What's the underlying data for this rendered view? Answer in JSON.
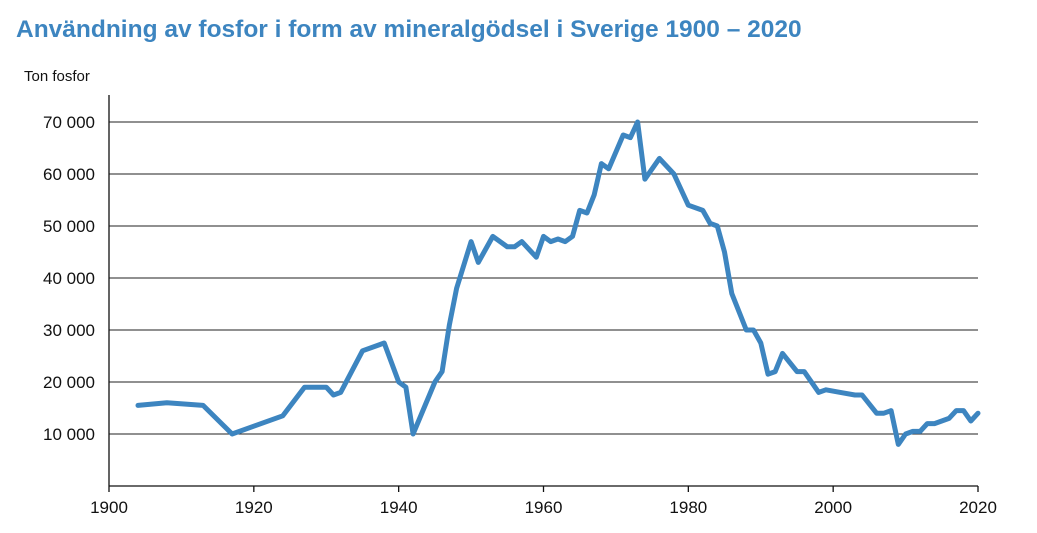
{
  "chart_data": {
    "type": "line",
    "title": "Användning av fosfor i form av mineralgödsel i Sverige 1900 – 2020",
    "ylabel": "Ton fosfor",
    "xlabel": "",
    "xlim": [
      1900,
      2020
    ],
    "ylim": [
      0,
      75000
    ],
    "grid": true,
    "x_ticks": [
      1900,
      1920,
      1940,
      1960,
      1980,
      2000,
      2020
    ],
    "x_tick_labels": [
      "1900",
      "1920",
      "1940",
      "1960",
      "1980",
      "2000",
      "2020"
    ],
    "y_ticks": [
      10000,
      20000,
      30000,
      40000,
      50000,
      60000,
      70000
    ],
    "y_tick_labels": [
      "10 000",
      "20 000",
      "30 000",
      "40 000",
      "50 000",
      "60 000",
      "70 000"
    ],
    "line_color": "#3d85c0",
    "series": [
      {
        "name": "Ton fosfor",
        "x": [
          1904,
          1908,
          1913,
          1917,
          1920,
          1924,
          1927,
          1930,
          1931,
          1932,
          1935,
          1938,
          1940,
          1941,
          1942,
          1945,
          1946,
          1947,
          1948,
          1950,
          1951,
          1953,
          1955,
          1956,
          1957,
          1959,
          1960,
          1961,
          1962,
          1963,
          1964,
          1965,
          1966,
          1967,
          1968,
          1969,
          1971,
          1972,
          1973,
          1974,
          1976,
          1978,
          1980,
          1982,
          1983,
          1984,
          1985,
          1986,
          1988,
          1989,
          1990,
          1991,
          1992,
          1993,
          1995,
          1996,
          1998,
          1999,
          2001,
          2003,
          2004,
          2006,
          2007,
          2008,
          2009,
          2010,
          2011,
          2012,
          2013,
          2014,
          2016,
          2017,
          2018,
          2019,
          2020
        ],
        "y": [
          15500,
          16000,
          15500,
          10000,
          11500,
          13500,
          19000,
          19000,
          17500,
          18000,
          26000,
          27500,
          20000,
          19000,
          10000,
          20000,
          22000,
          31000,
          38000,
          47000,
          43000,
          48000,
          46000,
          46000,
          47000,
          44000,
          48000,
          47000,
          47500,
          47000,
          48000,
          53000,
          52500,
          56000,
          62000,
          61000,
          67500,
          67000,
          70000,
          59000,
          63000,
          60000,
          54000,
          53000,
          50500,
          50000,
          45000,
          37000,
          30000,
          30000,
          27500,
          21500,
          22000,
          25500,
          22000,
          22000,
          18000,
          18500,
          18000,
          17500,
          17500,
          14000,
          14000,
          14500,
          8000,
          10000,
          10500,
          10500,
          12000,
          12000,
          13000,
          14500,
          14500,
          12500,
          14000
        ]
      }
    ]
  }
}
